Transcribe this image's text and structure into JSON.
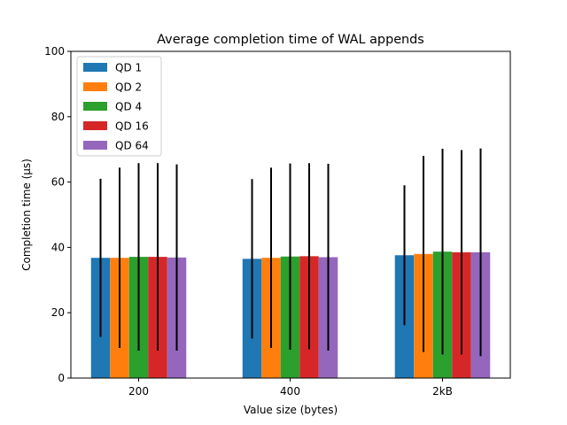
{
  "chart_data": {
    "type": "bar",
    "title": "Average completion time of WAL appends",
    "xlabel": "Value size (bytes)",
    "ylabel": "Completion time (µs)",
    "ylim": [
      0,
      100
    ],
    "yticks": [
      0,
      20,
      40,
      60,
      80,
      100
    ],
    "categories": [
      "200",
      "400",
      "2kB"
    ],
    "legend_position": "top-left",
    "grid": false,
    "series": [
      {
        "name": "QD 1",
        "color": "#1f77b4",
        "values": [
          36.8,
          36.5,
          37.6
        ],
        "errors": [
          24.2,
          24.4,
          21.4
        ]
      },
      {
        "name": "QD 2",
        "color": "#ff7f0e",
        "values": [
          36.8,
          36.8,
          38.0
        ],
        "errors": [
          27.6,
          27.6,
          30.0
        ]
      },
      {
        "name": "QD 4",
        "color": "#2ca02c",
        "values": [
          37.1,
          37.2,
          38.7
        ],
        "errors": [
          28.7,
          28.5,
          31.5
        ]
      },
      {
        "name": "QD 16",
        "color": "#d62728",
        "values": [
          37.1,
          37.3,
          38.5
        ],
        "errors": [
          28.7,
          28.5,
          31.3
        ]
      },
      {
        "name": "QD 64",
        "color": "#9467bd",
        "values": [
          36.9,
          37.0,
          38.5
        ],
        "errors": [
          28.5,
          28.6,
          31.8
        ]
      }
    ]
  }
}
